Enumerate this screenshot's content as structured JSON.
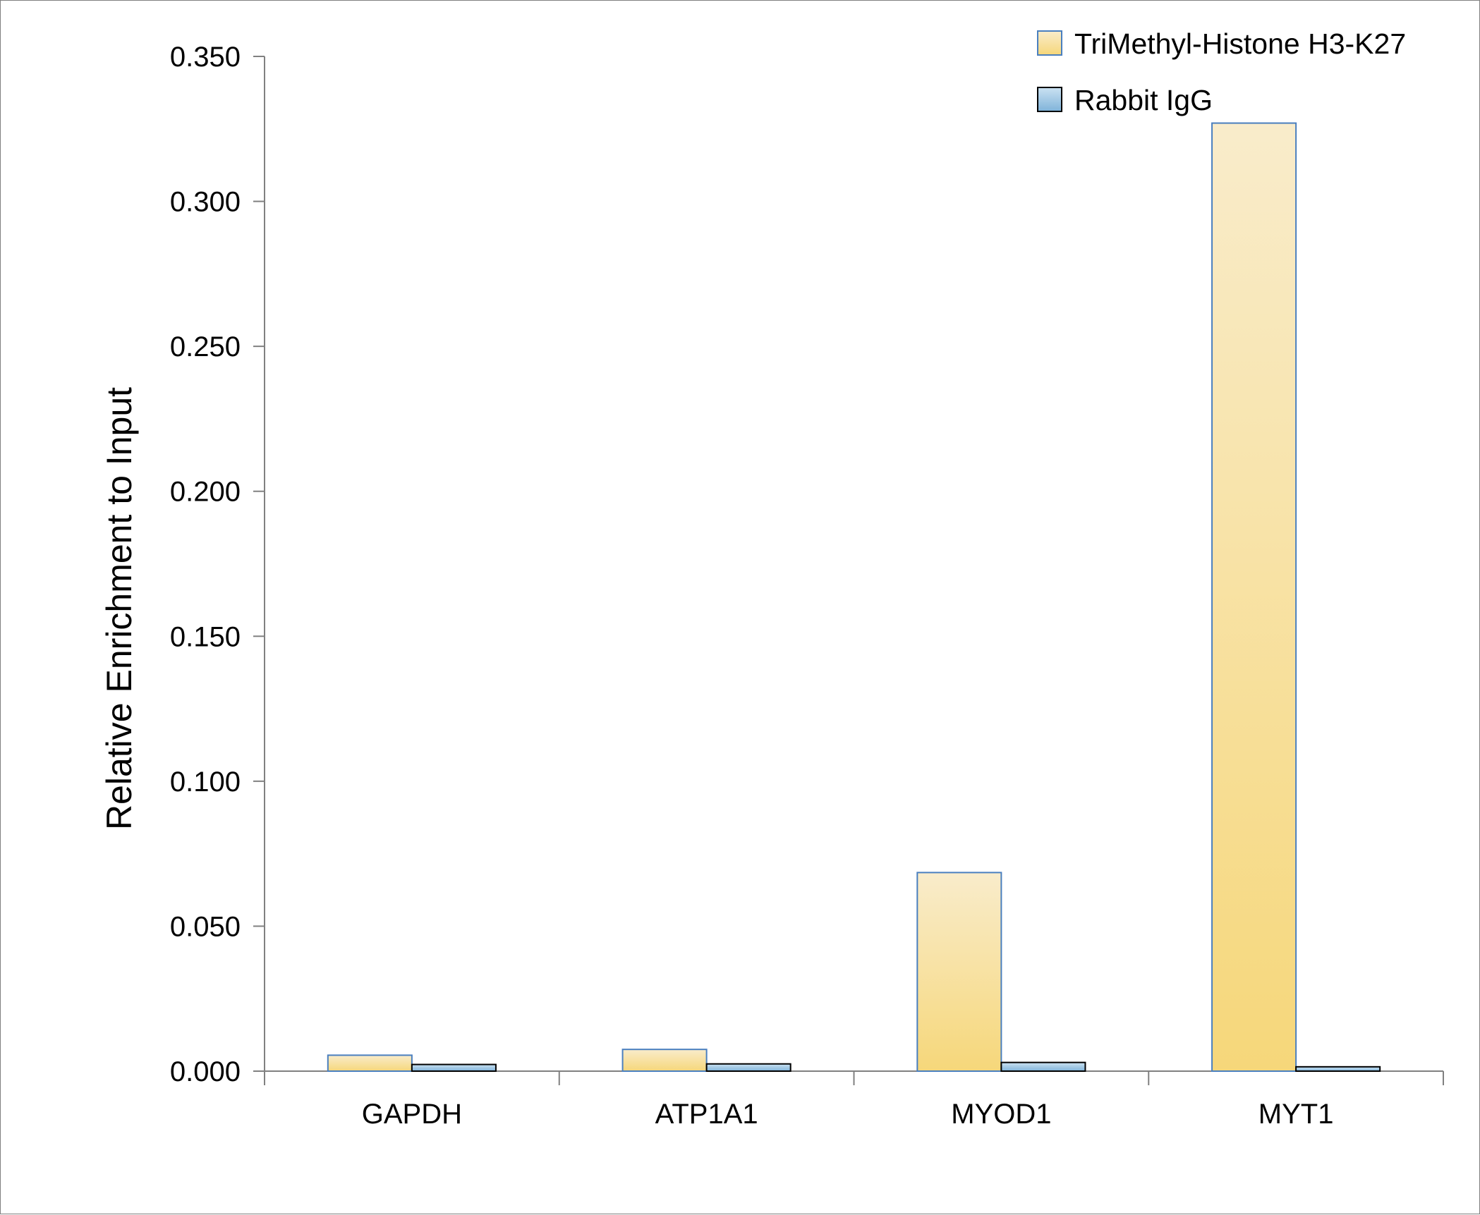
{
  "chart_data": {
    "type": "bar",
    "title": "",
    "xlabel": "",
    "ylabel": "Relative Enrichment to Input",
    "ylim": [
      0,
      0.35
    ],
    "yticks": [
      "0.000",
      "0.050",
      "0.100",
      "0.150",
      "0.200",
      "0.250",
      "0.300",
      "0.350"
    ],
    "categories": [
      "GAPDH",
      "ATP1A1",
      "MYOD1",
      "MYT1"
    ],
    "series": [
      {
        "name": "TriMethyl-Histone H3-K27",
        "values": [
          0.0055,
          0.0075,
          0.0685,
          0.327
        ],
        "color": "#f6d77a",
        "color_light": "#f9eccb",
        "stroke": "#4a7fbf"
      },
      {
        "name": "Rabbit IgG",
        "values": [
          0.0023,
          0.0025,
          0.003,
          0.0015
        ],
        "color": "#7fb3d9",
        "color_light": "#cbe2f2",
        "stroke": "#000000"
      }
    ],
    "grid": false,
    "legend_position": "top-right"
  }
}
